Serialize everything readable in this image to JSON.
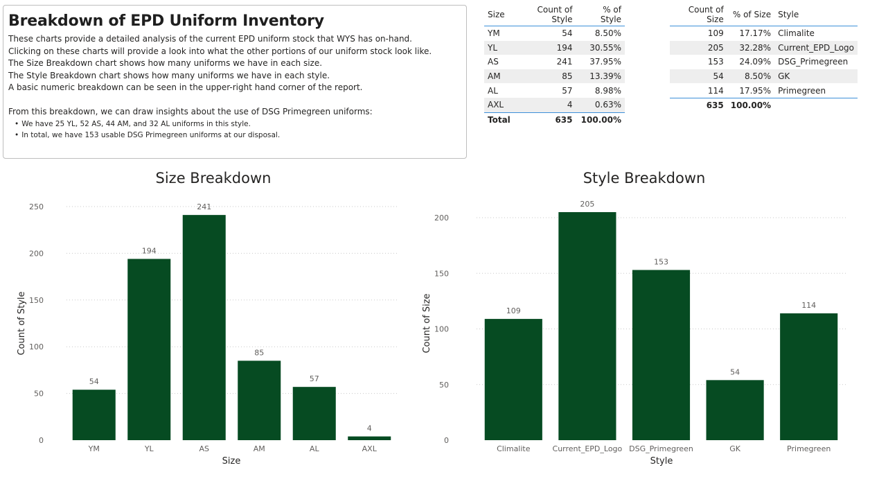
{
  "textbox": {
    "title": "Breakdown of EPD Uniform Inventory",
    "lines": [
      "These charts provide a detailed analysis of the current EPD uniform stock that WYS has on-hand.",
      "Clicking on these charts will provide a look into what the other portions of our uniform stock look like.",
      "The Size Breakdown chart shows how many uniforms we have in each size.",
      "The Style Breakdown chart shows how many uniforms we have in each style.",
      "A basic numeric breakdown can be seen in the upper-right hand corner of the report."
    ],
    "insight_intro": "From this breakdown, we can draw insights about the use of DSG Primegreen uniforms:",
    "bullets": [
      "We have 25 YL, 52 AS, 44 AM, and 32 AL uniforms in this style.",
      "In total, we have 153 usable DSG Primegreen uniforms at our disposal."
    ]
  },
  "size_table": {
    "headers": [
      "Size",
      "Count of Style",
      "% of Style"
    ],
    "rows": [
      [
        "YM",
        "54",
        "8.50%"
      ],
      [
        "YL",
        "194",
        "30.55%"
      ],
      [
        "AS",
        "241",
        "37.95%"
      ],
      [
        "AM",
        "85",
        "13.39%"
      ],
      [
        "AL",
        "57",
        "8.98%"
      ],
      [
        "AXL",
        "4",
        "0.63%"
      ]
    ],
    "total": [
      "Total",
      "635",
      "100.00%"
    ]
  },
  "style_table": {
    "headers": [
      "Count of Size",
      "% of Size",
      "Style"
    ],
    "rows": [
      [
        "109",
        "17.17%",
        "Climalite"
      ],
      [
        "205",
        "32.28%",
        "Current_EPD_Logo"
      ],
      [
        "153",
        "24.09%",
        "DSG_Primegreen"
      ],
      [
        "54",
        "8.50%",
        "GK"
      ],
      [
        "114",
        "17.95%",
        "Primegreen"
      ]
    ],
    "total": [
      "635",
      "100.00%",
      ""
    ]
  },
  "chart_data": [
    {
      "type": "bar",
      "title": "Size Breakdown",
      "xlabel": "Size",
      "ylabel": "Count of Style",
      "categories": [
        "YM",
        "YL",
        "AS",
        "AM",
        "AL",
        "AXL"
      ],
      "values": [
        54,
        194,
        241,
        85,
        57,
        4
      ],
      "ylim": [
        0,
        250
      ],
      "yticks": [
        0,
        50,
        100,
        150,
        200,
        250
      ],
      "grid": true,
      "color": "#064b22"
    },
    {
      "type": "bar",
      "title": "Style Breakdown",
      "xlabel": "Style",
      "ylabel": "Count of Size",
      "categories": [
        "Climalite",
        "Current_EPD_Logo",
        "DSG_Primegreen",
        "GK",
        "Primegreen"
      ],
      "values": [
        109,
        205,
        153,
        54,
        114
      ],
      "ylim": [
        0,
        210
      ],
      "yticks": [
        0,
        50,
        100,
        150,
        200
      ],
      "grid": true,
      "color": "#064b22"
    }
  ]
}
